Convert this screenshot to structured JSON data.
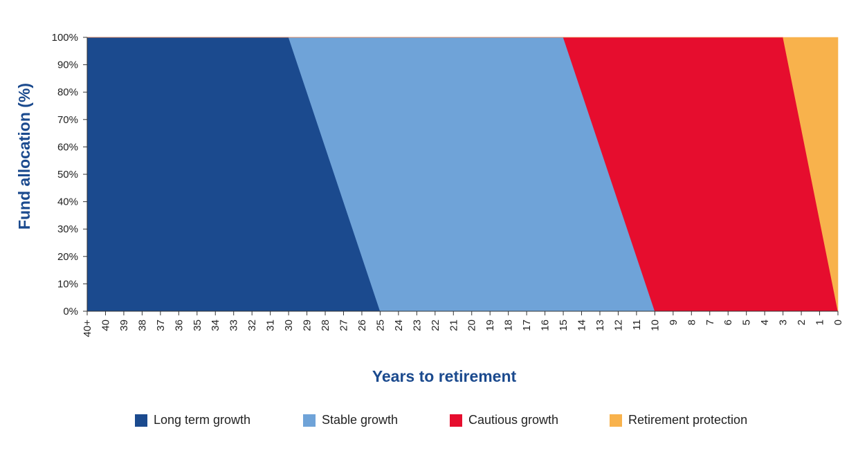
{
  "chart_data": {
    "type": "area",
    "stacked": true,
    "xlabel": "Years to retirement",
    "ylabel": "Fund allocation (%)",
    "ylim": [
      0,
      100
    ],
    "yticks": [
      "0%",
      "10%",
      "20%",
      "30%",
      "40%",
      "50%",
      "60%",
      "70%",
      "80%",
      "90%",
      "100%"
    ],
    "categories": [
      "40+",
      "40",
      "39",
      "38",
      "37",
      "36",
      "35",
      "34",
      "33",
      "32",
      "31",
      "30",
      "29",
      "28",
      "27",
      "26",
      "25",
      "24",
      "23",
      "22",
      "21",
      "20",
      "19",
      "18",
      "17",
      "16",
      "15",
      "14",
      "13",
      "12",
      "11",
      "10",
      "9",
      "8",
      "7",
      "6",
      "5",
      "4",
      "3",
      "2",
      "1",
      "0"
    ],
    "series": [
      {
        "name": "Long term growth",
        "color": "#1B4A8E",
        "values": [
          100,
          100,
          100,
          100,
          100,
          100,
          100,
          100,
          100,
          100,
          100,
          100,
          80,
          60,
          40,
          20,
          0,
          0,
          0,
          0,
          0,
          0,
          0,
          0,
          0,
          0,
          0,
          0,
          0,
          0,
          0,
          0,
          0,
          0,
          0,
          0,
          0,
          0,
          0,
          0,
          0,
          0
        ]
      },
      {
        "name": "Stable growth",
        "color": "#6FA3D8",
        "values": [
          0,
          0,
          0,
          0,
          0,
          0,
          0,
          0,
          0,
          0,
          0,
          0,
          20,
          40,
          60,
          80,
          100,
          100,
          100,
          100,
          100,
          100,
          100,
          100,
          100,
          100,
          100,
          80,
          60,
          40,
          20,
          0,
          0,
          0,
          0,
          0,
          0,
          0,
          0,
          0,
          0,
          0
        ]
      },
      {
        "name": "Cautious growth",
        "color": "#E60D2E",
        "values": [
          0,
          0,
          0,
          0,
          0,
          0,
          0,
          0,
          0,
          0,
          0,
          0,
          0,
          0,
          0,
          0,
          0,
          0,
          0,
          0,
          0,
          0,
          0,
          0,
          0,
          0,
          0,
          20,
          40,
          60,
          80,
          100,
          100,
          100,
          100,
          100,
          100,
          100,
          100,
          66.7,
          33.3,
          0
        ]
      },
      {
        "name": "Retirement protection",
        "color": "#F8B24C",
        "values": [
          0,
          0,
          0,
          0,
          0,
          0,
          0,
          0,
          0,
          0,
          0,
          0,
          0,
          0,
          0,
          0,
          0,
          0,
          0,
          0,
          0,
          0,
          0,
          0,
          0,
          0,
          0,
          0,
          0,
          0,
          0,
          0,
          0,
          0,
          0,
          0,
          0,
          0,
          0,
          33.3,
          66.7,
          100
        ]
      }
    ],
    "legend_position": "bottom",
    "grid": false
  }
}
